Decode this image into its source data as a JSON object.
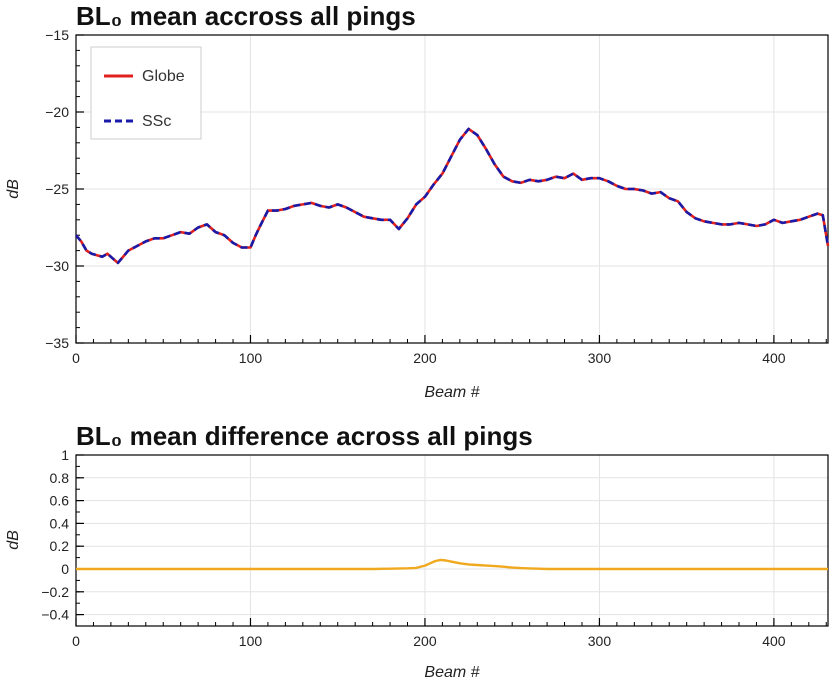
{
  "chart_data": [
    {
      "type": "line",
      "title": "BL₀ mean accross all pings",
      "xlabel": "Beam #",
      "ylabel": "dB",
      "xlim": [
        0,
        431
      ],
      "ylim": [
        -35,
        -15
      ],
      "xticks": [
        0,
        100,
        200,
        300,
        400
      ],
      "yticks": [
        -35,
        -30,
        -25,
        -20,
        -15
      ],
      "grid": true,
      "legend_position": "top-left",
      "series": [
        {
          "name": "Globe",
          "color": "#e0201c",
          "style": "solid",
          "x": [
            0,
            3,
            6,
            9,
            12,
            15,
            18,
            21,
            24,
            27,
            30,
            35,
            40,
            45,
            50,
            55,
            60,
            65,
            70,
            75,
            80,
            85,
            90,
            95,
            100,
            103,
            106,
            110,
            115,
            120,
            125,
            130,
            135,
            140,
            145,
            150,
            155,
            160,
            165,
            170,
            175,
            180,
            185,
            190,
            195,
            200,
            205,
            210,
            215,
            220,
            225,
            230,
            235,
            240,
            245,
            250,
            255,
            260,
            265,
            270,
            275,
            280,
            285,
            290,
            295,
            300,
            305,
            310,
            315,
            320,
            325,
            330,
            335,
            340,
            345,
            350,
            355,
            360,
            365,
            370,
            375,
            380,
            385,
            390,
            395,
            400,
            405,
            410,
            415,
            420,
            425,
            428,
            431
          ],
          "y": [
            -28.0,
            -28.4,
            -29.0,
            -29.2,
            -29.3,
            -29.4,
            -29.2,
            -29.5,
            -29.8,
            -29.4,
            -29.0,
            -28.7,
            -28.4,
            -28.2,
            -28.2,
            -28.0,
            -27.8,
            -27.9,
            -27.5,
            -27.3,
            -27.8,
            -28.0,
            -28.5,
            -28.8,
            -28.8,
            -28.0,
            -27.3,
            -26.4,
            -26.4,
            -26.3,
            -26.1,
            -26.0,
            -25.9,
            -26.1,
            -26.2,
            -26.0,
            -26.2,
            -26.5,
            -26.8,
            -26.9,
            -27.0,
            -27.0,
            -27.6,
            -26.9,
            -26.0,
            -25.5,
            -24.7,
            -24.0,
            -22.9,
            -21.8,
            -21.1,
            -21.5,
            -22.4,
            -23.4,
            -24.2,
            -24.5,
            -24.6,
            -24.4,
            -24.5,
            -24.4,
            -24.2,
            -24.3,
            -24.0,
            -24.4,
            -24.3,
            -24.3,
            -24.5,
            -24.8,
            -25.0,
            -25.0,
            -25.1,
            -25.3,
            -25.2,
            -25.6,
            -25.8,
            -26.5,
            -26.9,
            -27.1,
            -27.2,
            -27.3,
            -27.3,
            -27.2,
            -27.3,
            -27.4,
            -27.3,
            -27.0,
            -27.2,
            -27.1,
            -27.0,
            -26.8,
            -26.6,
            -26.7,
            -28.7
          ]
        },
        {
          "name": "SSc",
          "color": "#1a1aa8",
          "style": "dashed",
          "x": [
            0,
            3,
            6,
            9,
            12,
            15,
            18,
            21,
            24,
            27,
            30,
            35,
            40,
            45,
            50,
            55,
            60,
            65,
            70,
            75,
            80,
            85,
            90,
            95,
            100,
            103,
            106,
            110,
            115,
            120,
            125,
            130,
            135,
            140,
            145,
            150,
            155,
            160,
            165,
            170,
            175,
            180,
            185,
            190,
            195,
            200,
            205,
            210,
            215,
            220,
            225,
            230,
            235,
            240,
            245,
            250,
            255,
            260,
            265,
            270,
            275,
            280,
            285,
            290,
            295,
            300,
            305,
            310,
            315,
            320,
            325,
            330,
            335,
            340,
            345,
            350,
            355,
            360,
            365,
            370,
            375,
            380,
            385,
            390,
            395,
            400,
            405,
            410,
            415,
            420,
            425,
            428,
            431
          ],
          "y": [
            -28.0,
            -28.4,
            -29.0,
            -29.2,
            -29.3,
            -29.4,
            -29.2,
            -29.5,
            -29.8,
            -29.4,
            -29.0,
            -28.7,
            -28.4,
            -28.2,
            -28.2,
            -28.0,
            -27.8,
            -27.9,
            -27.5,
            -27.3,
            -27.8,
            -28.0,
            -28.5,
            -28.8,
            -28.8,
            -28.0,
            -27.3,
            -26.4,
            -26.4,
            -26.3,
            -26.1,
            -26.0,
            -25.9,
            -26.1,
            -26.2,
            -26.0,
            -26.2,
            -26.5,
            -26.8,
            -26.9,
            -27.0,
            -27.0,
            -27.6,
            -26.9,
            -26.0,
            -25.5,
            -24.7,
            -24.0,
            -22.9,
            -21.8,
            -21.1,
            -21.5,
            -22.4,
            -23.4,
            -24.2,
            -24.5,
            -24.6,
            -24.4,
            -24.5,
            -24.4,
            -24.2,
            -24.3,
            -24.0,
            -24.4,
            -24.3,
            -24.3,
            -24.5,
            -24.8,
            -25.0,
            -25.0,
            -25.1,
            -25.3,
            -25.2,
            -25.6,
            -25.8,
            -26.5,
            -26.9,
            -27.1,
            -27.2,
            -27.3,
            -27.3,
            -27.2,
            -27.3,
            -27.4,
            -27.3,
            -27.0,
            -27.2,
            -27.1,
            -27.0,
            -26.8,
            -26.6,
            -26.7,
            -28.7
          ]
        }
      ]
    },
    {
      "type": "line",
      "title": "BL₀ mean difference across all pings",
      "xlabel": "Beam #",
      "ylabel": "dB",
      "xlim": [
        0,
        431
      ],
      "ylim": [
        -0.5,
        1
      ],
      "xticks": [
        0,
        100,
        200,
        300,
        400
      ],
      "yticks": [
        -0.4,
        -0.2,
        0,
        0.2,
        0.4,
        0.6,
        0.8,
        1
      ],
      "grid": true,
      "series": [
        {
          "color": "#f0a91e",
          "style": "solid",
          "x": [
            0,
            100,
            170,
            180,
            190,
            195,
            200,
            203,
            206,
            209,
            212,
            215,
            220,
            225,
            230,
            235,
            240,
            245,
            250,
            255,
            260,
            265,
            270,
            431
          ],
          "y": [
            0,
            0,
            0,
            0.003,
            0.006,
            0.01,
            0.03,
            0.05,
            0.07,
            0.08,
            0.075,
            0.065,
            0.05,
            0.04,
            0.035,
            0.03,
            0.025,
            0.02,
            0.012,
            0.008,
            0.005,
            0.003,
            0,
            0
          ]
        }
      ]
    }
  ]
}
